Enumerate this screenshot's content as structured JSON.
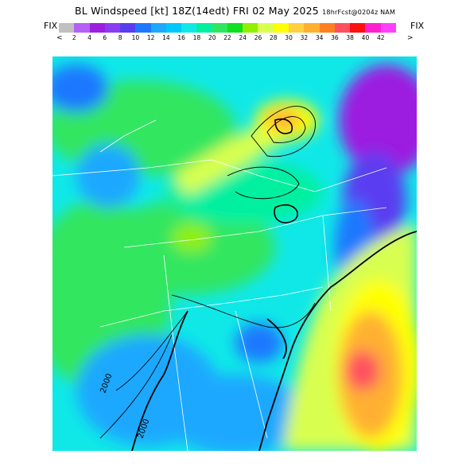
{
  "title": {
    "main": "BL Windspeed [kt] 18Z(14edt) FRI 02 May 2025",
    "sub": "18hrFcst@0204z NAM"
  },
  "legend": {
    "left_label": "FIX",
    "right_label": "FIX",
    "left_arrow": "<",
    "right_arrow": ">",
    "ticks": [
      "2",
      "4",
      "6",
      "8",
      "10",
      "12",
      "14",
      "16",
      "18",
      "20",
      "22",
      "24",
      "26",
      "28",
      "30",
      "32",
      "34",
      "36",
      "38",
      "40",
      "42"
    ],
    "colors": [
      "#c0c0c0",
      "#b462f5",
      "#9c1fe0",
      "#8a3df0",
      "#5a3cf0",
      "#1e78ff",
      "#1ea8ff",
      "#00c8ff",
      "#10e8e8",
      "#00f0a0",
      "#30e660",
      "#10e020",
      "#90f000",
      "#d8ff50",
      "#ffff00",
      "#ffd040",
      "#ffb030",
      "#ff8020",
      "#ff5060",
      "#ff1010",
      "#ff20d0",
      "#ff40ff"
    ]
  },
  "map": {
    "contour_labels": [
      "2000",
      "2000"
    ]
  }
}
